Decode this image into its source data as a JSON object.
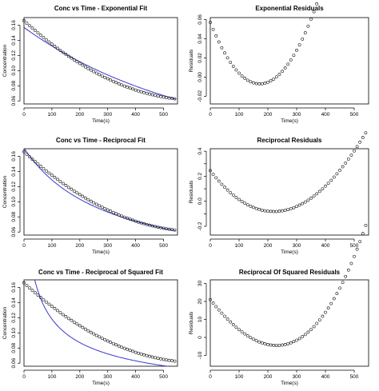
{
  "chart_data": [
    {
      "type": "scatter",
      "title": "Conc vs Time - Exponential Fit",
      "xlabel": "Time(s)",
      "ylabel": "Concentration",
      "xlim": [
        0,
        550
      ],
      "ylim": [
        0.056,
        0.17
      ],
      "xticks": [
        0,
        100,
        200,
        300,
        400,
        500
      ],
      "yticks": [
        0.06,
        0.08,
        0.1,
        0.12,
        0.14,
        0.16
      ],
      "ytick_labels": [
        "0.06",
        "0.08",
        "0.10",
        "0.12",
        "0.14",
        "0.16"
      ],
      "points": {
        "model": "conc",
        "x_start": 0,
        "x_step": 10,
        "x_end": 540
      },
      "fit": {
        "model": "exp",
        "color": "#3a3ad0"
      }
    },
    {
      "type": "scatter",
      "title": "Exponential Residuals",
      "xlabel": "Time(s)",
      "ylabel": "Residuals",
      "xlim": [
        0,
        550
      ],
      "ylim": [
        -0.028,
        0.062
      ],
      "xticks": [
        0,
        100,
        200,
        300,
        400,
        500
      ],
      "yticks": [
        -0.02,
        0.0,
        0.02,
        0.04,
        0.06
      ],
      "ytick_labels": [
        "-0.02",
        "0.00",
        "0.02",
        "0.04",
        "0.06"
      ],
      "points": {
        "model": "res_exp",
        "x_start": 0,
        "x_step": 10,
        "x_end": 540
      }
    },
    {
      "type": "scatter",
      "title": "Conc vs Time - Reciprocal Fit",
      "xlabel": "Time(s)",
      "ylabel": "Concentration",
      "xlim": [
        0,
        550
      ],
      "ylim": [
        0.056,
        0.17
      ],
      "xticks": [
        0,
        100,
        200,
        300,
        400,
        500
      ],
      "yticks": [
        0.06,
        0.08,
        0.1,
        0.12,
        0.14,
        0.16
      ],
      "ytick_labels": [
        "0.06",
        "0.08",
        "0.10",
        "0.12",
        "0.14",
        "0.16"
      ],
      "points": {
        "model": "conc",
        "x_start": 0,
        "x_step": 10,
        "x_end": 540
      },
      "fit": {
        "model": "recip",
        "color": "#3a3ad0"
      }
    },
    {
      "type": "scatter",
      "title": "Reciprocal Residuals",
      "xlabel": "Time(s)",
      "ylabel": "Residuals",
      "xlim": [
        0,
        550
      ],
      "ylim": [
        -0.27,
        0.42
      ],
      "xticks": [
        0,
        100,
        200,
        300,
        400,
        500
      ],
      "yticks": [
        -0.2,
        -0.1,
        0.0,
        0.1,
        0.2,
        0.3,
        0.4
      ],
      "ytick_labels": [
        "-0.2",
        "",
        "0.0",
        "",
        "0.2",
        "",
        "0.4"
      ],
      "points": {
        "model": "res_recip",
        "x_start": 0,
        "x_step": 10,
        "x_end": 540
      }
    },
    {
      "type": "scatter",
      "title": "Conc vs Time - Reciprocal of Squared Fit",
      "xlabel": "Time(s)",
      "ylabel": "Concentration",
      "xlim": [
        0,
        550
      ],
      "ylim": [
        0.056,
        0.17
      ],
      "xticks": [
        0,
        100,
        200,
        300,
        400,
        500
      ],
      "yticks": [
        0.06,
        0.08,
        0.1,
        0.12,
        0.14,
        0.16
      ],
      "ytick_labels": [
        "0.06",
        "0.08",
        "0.10",
        "0.12",
        "0.14",
        "0.16"
      ],
      "points": {
        "model": "conc",
        "x_start": 0,
        "x_step": 10,
        "x_end": 540
      },
      "fit": {
        "model": "recipsq",
        "color": "#3a3ad0"
      }
    },
    {
      "type": "scatter",
      "title": "Reciprocal Of Squared Residuals",
      "xlabel": "Time(s)",
      "ylabel": "Residuals",
      "xlim": [
        0,
        550
      ],
      "ylim": [
        -16,
        32
      ],
      "xticks": [
        0,
        100,
        200,
        300,
        400,
        500
      ],
      "yticks": [
        -10,
        0,
        10,
        20,
        30
      ],
      "ytick_labels": [
        "-10",
        "0",
        "10",
        "20",
        "30"
      ],
      "points": {
        "model": "res_recipsq",
        "x_start": 0,
        "x_step": 10,
        "x_end": 540
      }
    }
  ]
}
